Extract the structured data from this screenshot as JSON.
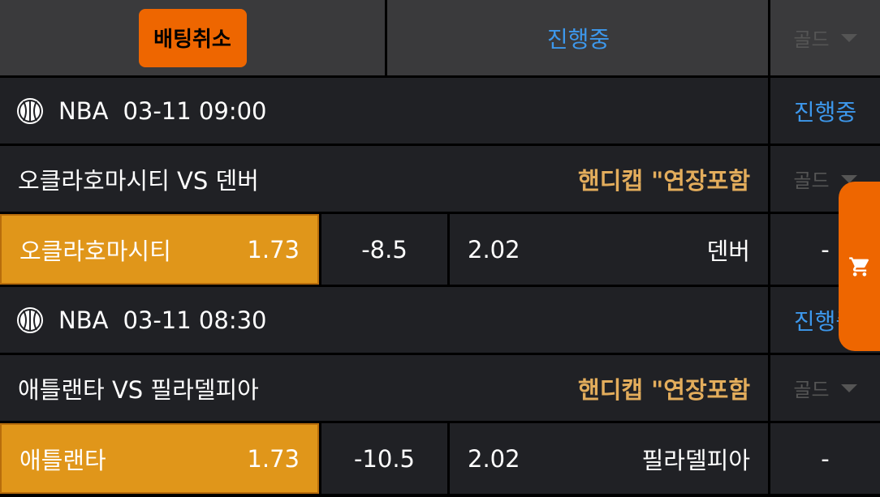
{
  "header": {
    "cancel_label": "배팅취소",
    "status_label": "진행중",
    "gold_label": "골드"
  },
  "matches": [
    {
      "league": "NBA",
      "datetime": "03-11 09:00",
      "status": "진행중",
      "teams": "오클라호마시티 VS 덴버",
      "market": "핸디캡 \"연장포함",
      "gold": "골드",
      "home": "오클라호마시티",
      "home_odds": "1.73",
      "handicap": "-8.5",
      "away_odds": "2.02",
      "away": "덴버",
      "draw": "-"
    },
    {
      "league": "NBA",
      "datetime": "03-11 08:30",
      "status": "진행중",
      "teams": "애틀랜타 VS 필라델피아",
      "market": "핸디캡 \"연장포함",
      "gold": "골드",
      "home": "애틀랜타",
      "home_odds": "1.73",
      "handicap": "-10.5",
      "away_odds": "2.02",
      "away": "필라델피아",
      "draw": "-"
    }
  ],
  "colors": {
    "accent": "#ee6600",
    "selected": "#e0961a",
    "status": "#3d98ec",
    "market": "#e3ad5c"
  }
}
